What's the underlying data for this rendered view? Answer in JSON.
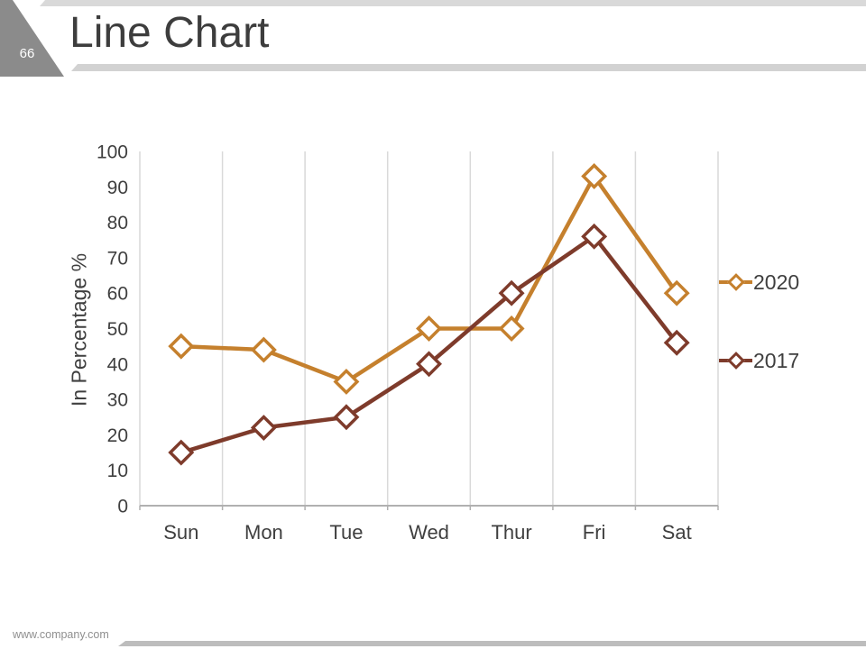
{
  "slide": {
    "page_number": "66",
    "title": "Line Chart",
    "footer_url": "www.company.com"
  },
  "chart_data": {
    "type": "line",
    "title": "Line Chart",
    "categories": [
      "Sun",
      "Mon",
      "Tue",
      "Wed",
      "Thur",
      "Fri",
      "Sat"
    ],
    "series": [
      {
        "name": "2020",
        "color": "#C5802D",
        "values": [
          45,
          44,
          35,
          50,
          50,
          93,
          60
        ]
      },
      {
        "name": "2017",
        "color": "#7E3B2B",
        "values": [
          15,
          22,
          25,
          40,
          60,
          76,
          46
        ]
      }
    ],
    "xlabel": "",
    "ylabel": "In Percentage %",
    "ylim": [
      0,
      100
    ],
    "ytick_step": 10,
    "grid": "vertical-only",
    "legend_position": "right",
    "marker": "diamond",
    "axis_text_color": "#3f3f3f",
    "gridline_color": "#d9d9d9",
    "axis_line_color": "#b0b0b0"
  }
}
